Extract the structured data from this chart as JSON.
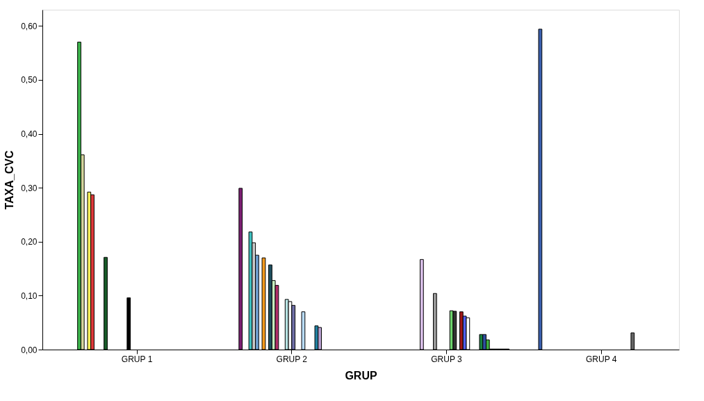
{
  "chart_data": {
    "type": "bar",
    "xlabel": "GRUP",
    "ylabel": "TAXA_CVC",
    "categories": [
      "GRUP 1",
      "GRUP 2",
      "GRUP 3",
      "GRUP 4"
    ],
    "ylim": [
      0,
      0.63
    ],
    "yticks": [
      {
        "value": 0,
        "label": "0,00"
      },
      {
        "value": 0.1,
        "label": "0,10"
      },
      {
        "value": 0.2,
        "label": "0,20"
      },
      {
        "value": 0.3,
        "label": "0,30"
      },
      {
        "value": 0.4,
        "label": "0,40"
      },
      {
        "value": 0.5,
        "label": "0,50"
      },
      {
        "value": 0.6,
        "label": "0,60"
      }
    ],
    "grid": false,
    "legend": false,
    "series": [
      {
        "color": "#3a5fad",
        "values": [
          null,
          null,
          null,
          0.594
        ]
      },
      {
        "color": "#3cb44b",
        "values": [
          0.57,
          null,
          null,
          null
        ]
      },
      {
        "color": "#d4d49c",
        "values": [
          0.361,
          null,
          null,
          null
        ]
      },
      {
        "color": "#7b1f72",
        "values": [
          null,
          0.299,
          null,
          null
        ]
      },
      {
        "color": "#f5ee5a",
        "values": [
          0.292,
          null,
          null,
          null
        ]
      },
      {
        "color": "#e03a3a",
        "values": [
          0.287,
          null,
          null,
          null
        ]
      },
      {
        "color": "#3dbfbf",
        "values": [
          null,
          0.218,
          null,
          null
        ]
      },
      {
        "color": "#c8c8c8",
        "values": [
          null,
          0.198,
          null,
          null
        ]
      },
      {
        "color": "#6f9fd0",
        "values": [
          null,
          0.175,
          null,
          null
        ]
      },
      {
        "color": "#1a5c2a",
        "values": [
          0.171,
          null,
          null,
          null
        ]
      },
      {
        "color": "#f59a1c",
        "values": [
          null,
          0.17,
          null,
          null
        ]
      },
      {
        "color": "#d9bfe8",
        "values": [
          null,
          null,
          0.167,
          null
        ]
      },
      {
        "color": "#1f5060",
        "values": [
          null,
          0.157,
          null,
          null
        ]
      },
      {
        "color": "#c8f0c0",
        "values": [
          null,
          0.128,
          null,
          null
        ]
      },
      {
        "color": "#b0306a",
        "values": [
          null,
          0.119,
          null,
          null
        ]
      },
      {
        "color": "#999999",
        "values": [
          null,
          null,
          0.104,
          null
        ]
      },
      {
        "color": "#000000",
        "values": [
          0.096,
          null,
          null,
          null
        ]
      },
      {
        "color": "#b8e4e4",
        "values": [
          null,
          0.093,
          null,
          null
        ]
      },
      {
        "color": "#f8f8f8",
        "values": [
          null,
          0.089,
          null,
          null
        ]
      },
      {
        "color": "#7070a8",
        "values": [
          null,
          0.082,
          null,
          null
        ]
      },
      {
        "color": "#6dd46d",
        "values": [
          null,
          null,
          0.072,
          null
        ]
      },
      {
        "color": "#333333",
        "values": [
          null,
          null,
          0.071,
          null
        ]
      },
      {
        "color": "#b8dcf8",
        "values": [
          null,
          0.07,
          null,
          null
        ]
      },
      {
        "color": "#a01818",
        "values": [
          null,
          null,
          0.07,
          null
        ]
      },
      {
        "color": "#5060f0",
        "values": [
          null,
          null,
          0.062,
          null
        ]
      },
      {
        "color": "#ffffff",
        "values": [
          null,
          null,
          0.059,
          null
        ]
      },
      {
        "color": "#2080a0",
        "values": [
          null,
          0.044,
          null,
          null
        ]
      },
      {
        "color": "#b8a0d0",
        "values": [
          null,
          0.041,
          null,
          null
        ]
      },
      {
        "color": "#666666",
        "values": [
          null,
          null,
          null,
          0.031
        ]
      },
      {
        "color": "#1a8040",
        "values": [
          null,
          null,
          0.028,
          null
        ]
      },
      {
        "color": "#3050a0",
        "values": [
          null,
          null,
          0.028,
          null
        ]
      },
      {
        "color": "#40b040",
        "values": [
          null,
          null,
          0.018,
          null
        ]
      },
      {
        "color": "#404040",
        "values": [
          null,
          null,
          0.001,
          null
        ]
      },
      {
        "color": "#505050",
        "values": [
          null,
          null,
          0.001,
          null
        ]
      },
      {
        "color": "#404040",
        "values": [
          null,
          null,
          0.001,
          null
        ]
      },
      {
        "color": "#505050",
        "values": [
          null,
          null,
          0.001,
          null
        ]
      },
      {
        "color": "#404040",
        "values": [
          null,
          null,
          0.001,
          null
        ]
      },
      {
        "color": "#505050",
        "values": [
          null,
          null,
          0.001,
          null
        ]
      }
    ]
  }
}
